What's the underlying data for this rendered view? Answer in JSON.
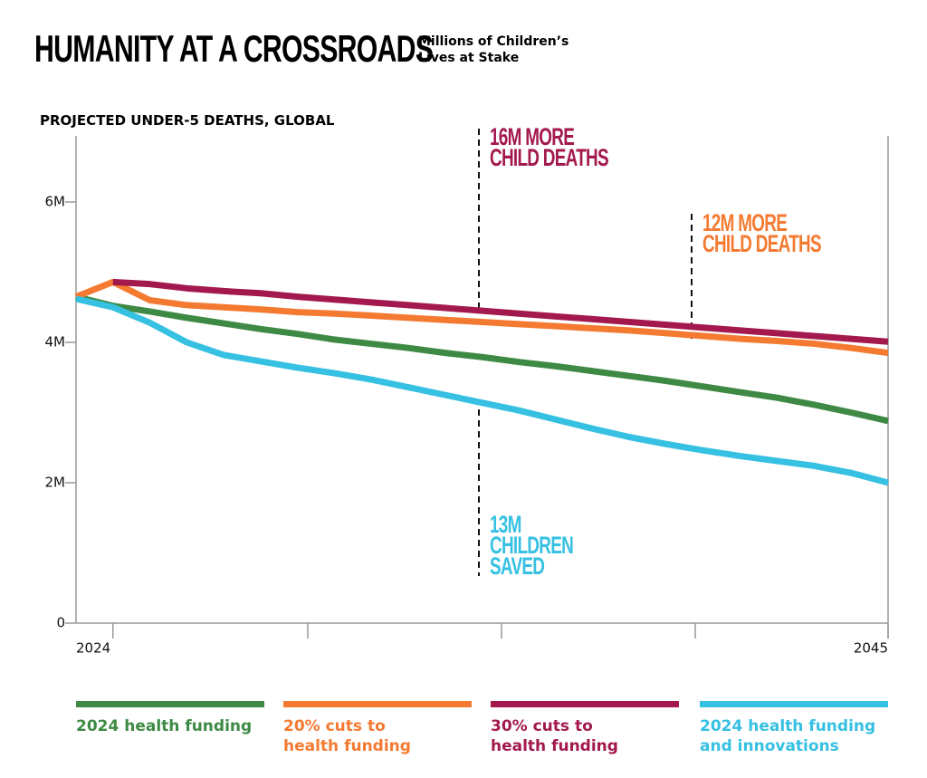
{
  "chart_data": {
    "type": "line",
    "title": "HUMANITY AT A CROSSROADS",
    "subtitle": "Millions of Children’s Lives at Stake",
    "y_label": "PROJECTED UNDER-5 DEATHS, GLOBAL",
    "x": [
      2023,
      2024,
      2025,
      2026,
      2027,
      2028,
      2029,
      2030,
      2031,
      2032,
      2033,
      2034,
      2035,
      2036,
      2037,
      2038,
      2039,
      2040,
      2041,
      2042,
      2043,
      2044,
      2045
    ],
    "xlim": [
      2023,
      2045
    ],
    "xticks": [
      2024,
      2045
    ],
    "ylim": [
      0,
      7
    ],
    "yticks": [
      0,
      {
        "value": 2,
        "label": "2M"
      },
      {
        "value": 4,
        "label": "4M"
      },
      {
        "value": 6,
        "label": "6M"
      }
    ],
    "series": [
      {
        "name": "2024 health funding",
        "color": "#3e8a44",
        "values": [
          4.65,
          4.52,
          4.44,
          4.35,
          4.27,
          4.19,
          4.12,
          4.04,
          3.98,
          3.92,
          3.85,
          3.79,
          3.72,
          3.66,
          3.59,
          3.52,
          3.45,
          3.37,
          3.29,
          3.21,
          3.11,
          3.0,
          2.88
        ]
      },
      {
        "name": "20% cuts to health funding",
        "color": "#f47a32",
        "values": [
          4.65,
          4.86,
          4.6,
          4.53,
          4.5,
          4.47,
          4.43,
          4.41,
          4.38,
          4.35,
          4.32,
          4.29,
          4.26,
          4.23,
          4.2,
          4.17,
          4.13,
          4.09,
          4.05,
          4.02,
          3.98,
          3.92,
          3.85
        ]
      },
      {
        "name": "30% cuts to health funding",
        "color": "#a3194d",
        "values": [
          null,
          4.86,
          4.83,
          4.77,
          4.73,
          4.7,
          4.65,
          4.61,
          4.57,
          4.53,
          4.49,
          4.45,
          4.41,
          4.37,
          4.33,
          4.29,
          4.25,
          4.21,
          4.17,
          4.13,
          4.09,
          4.05,
          4.01
        ]
      },
      {
        "name": "2024 health funding and innovations",
        "color": "#36c0e2",
        "values": [
          4.62,
          4.5,
          4.28,
          4.0,
          3.82,
          3.73,
          3.64,
          3.56,
          3.47,
          3.36,
          3.25,
          3.14,
          3.03,
          2.9,
          2.77,
          2.65,
          2.55,
          2.46,
          2.38,
          2.31,
          2.24,
          2.14,
          2.0
        ]
      }
    ],
    "annotations": [
      {
        "text": "16M MORE CHILD DEATHS",
        "color": "#a3194d"
      },
      {
        "text": "12M MORE CHILD DEATHS",
        "color": "#f47a32"
      },
      {
        "text": "13M CHILDREN SAVED",
        "color": "#36c0e2"
      }
    ]
  }
}
